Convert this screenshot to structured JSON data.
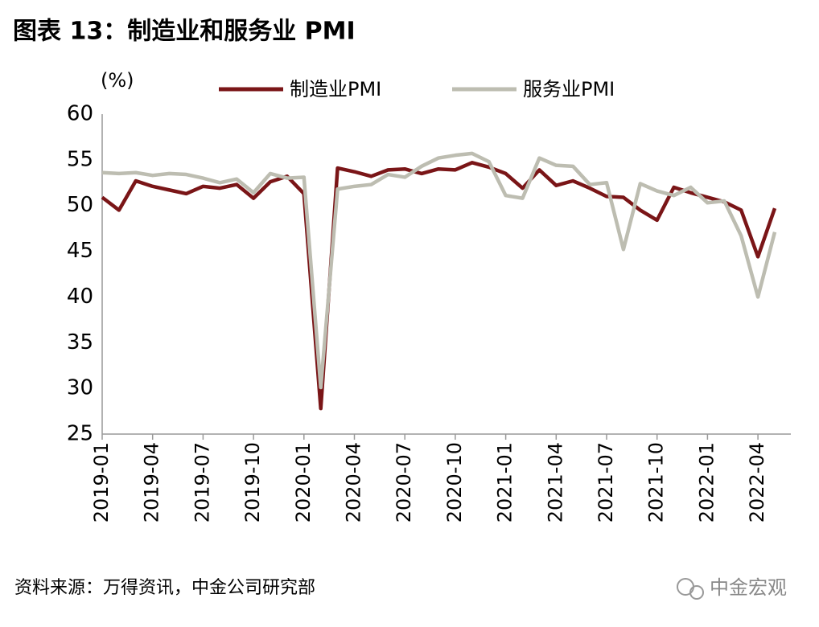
{
  "chart_data": {
    "type": "line",
    "title": "图表 13：制造业和服务业 PMI",
    "y_unit": "(%)",
    "source": "资料来源：万得资讯，中金公司研究部",
    "watermark": "中金宏观",
    "categories": [
      "2019-01",
      null,
      null,
      "2019-04",
      null,
      null,
      "2019-07",
      null,
      null,
      "2019-10",
      null,
      null,
      "2020-01",
      null,
      null,
      "2020-04",
      null,
      null,
      "2020-07",
      null,
      null,
      "2020-10",
      null,
      null,
      "2021-01",
      null,
      null,
      "2021-04",
      null,
      null,
      "2021-07",
      null,
      null,
      "2021-10",
      null,
      null,
      "2022-01",
      null,
      null,
      "2022-04",
      null
    ],
    "series": [
      {
        "name": "制造业PMI",
        "color": "#7a1517",
        "values": [
          50.9,
          49.5,
          52.7,
          52.1,
          51.7,
          51.3,
          52.1,
          51.9,
          52.3,
          50.8,
          52.6,
          53.2,
          51.3,
          27.8,
          54.1,
          53.7,
          53.2,
          53.9,
          54.0,
          53.5,
          54.0,
          53.9,
          54.7,
          54.2,
          53.5,
          51.9,
          53.9,
          52.2,
          52.7,
          51.9,
          51.0,
          50.9,
          49.5,
          48.4,
          52.0,
          51.4,
          50.9,
          50.4,
          49.5,
          44.4,
          49.7
        ]
      },
      {
        "name": "服务业PMI",
        "color": "#bdbdb1",
        "values": [
          53.6,
          53.5,
          53.6,
          53.3,
          53.5,
          53.4,
          53.0,
          52.5,
          52.9,
          51.4,
          53.5,
          53.0,
          53.1,
          30.1,
          51.8,
          52.1,
          52.3,
          53.4,
          53.1,
          54.3,
          55.2,
          55.5,
          55.7,
          54.8,
          51.1,
          50.8,
          55.2,
          54.4,
          54.3,
          52.3,
          52.5,
          45.2,
          52.4,
          51.6,
          51.1,
          52.0,
          50.3,
          50.5,
          46.7,
          40.0,
          47.1
        ]
      }
    ],
    "ylim": [
      25,
      60
    ],
    "yticks": [
      25,
      30,
      35,
      40,
      45,
      50,
      55,
      60
    ],
    "grid": false
  }
}
